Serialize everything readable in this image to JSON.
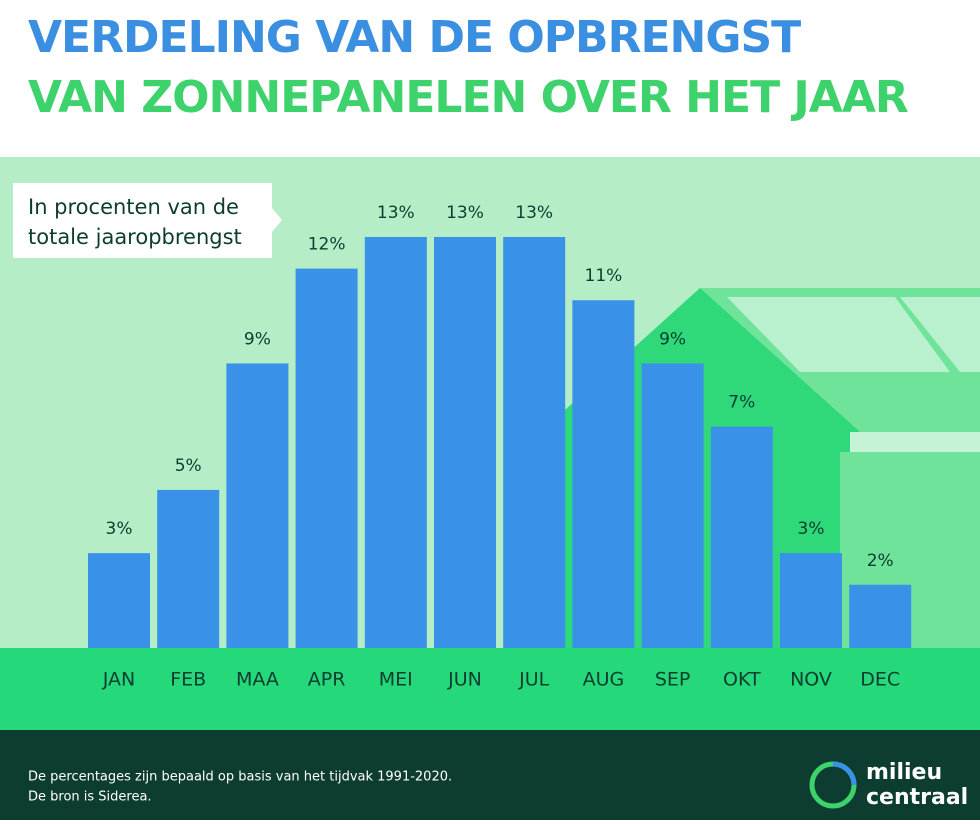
{
  "chart_data": {
    "type": "bar",
    "title": [
      "VERDELING VAN DE OPBRENGST",
      "VAN ZONNEPANELEN OVER HET JAAR"
    ],
    "subtitle": [
      "In procenten van de",
      "totale jaaropbrengst"
    ],
    "categories": [
      "JAN",
      "FEB",
      "MAA",
      "APR",
      "MEI",
      "JUN",
      "JUL",
      "AUG",
      "SEP",
      "OKT",
      "NOV",
      "DEC"
    ],
    "values": [
      3,
      5,
      9,
      12,
      13,
      13,
      13,
      11,
      9,
      7,
      3,
      2
    ],
    "value_labels": [
      "3%",
      "5%",
      "9%",
      "12%",
      "13%",
      "13%",
      "13%",
      "11%",
      "9%",
      "7%",
      "3%",
      "2%"
    ],
    "color": "#3a91e8",
    "ylim": [
      0,
      13
    ],
    "notes": [
      "De percentages zijn bepaald op basis van het tijdvak 1991-2020.",
      "De bron is Siderea."
    ],
    "logo": [
      "milieu",
      "centraal"
    ]
  }
}
